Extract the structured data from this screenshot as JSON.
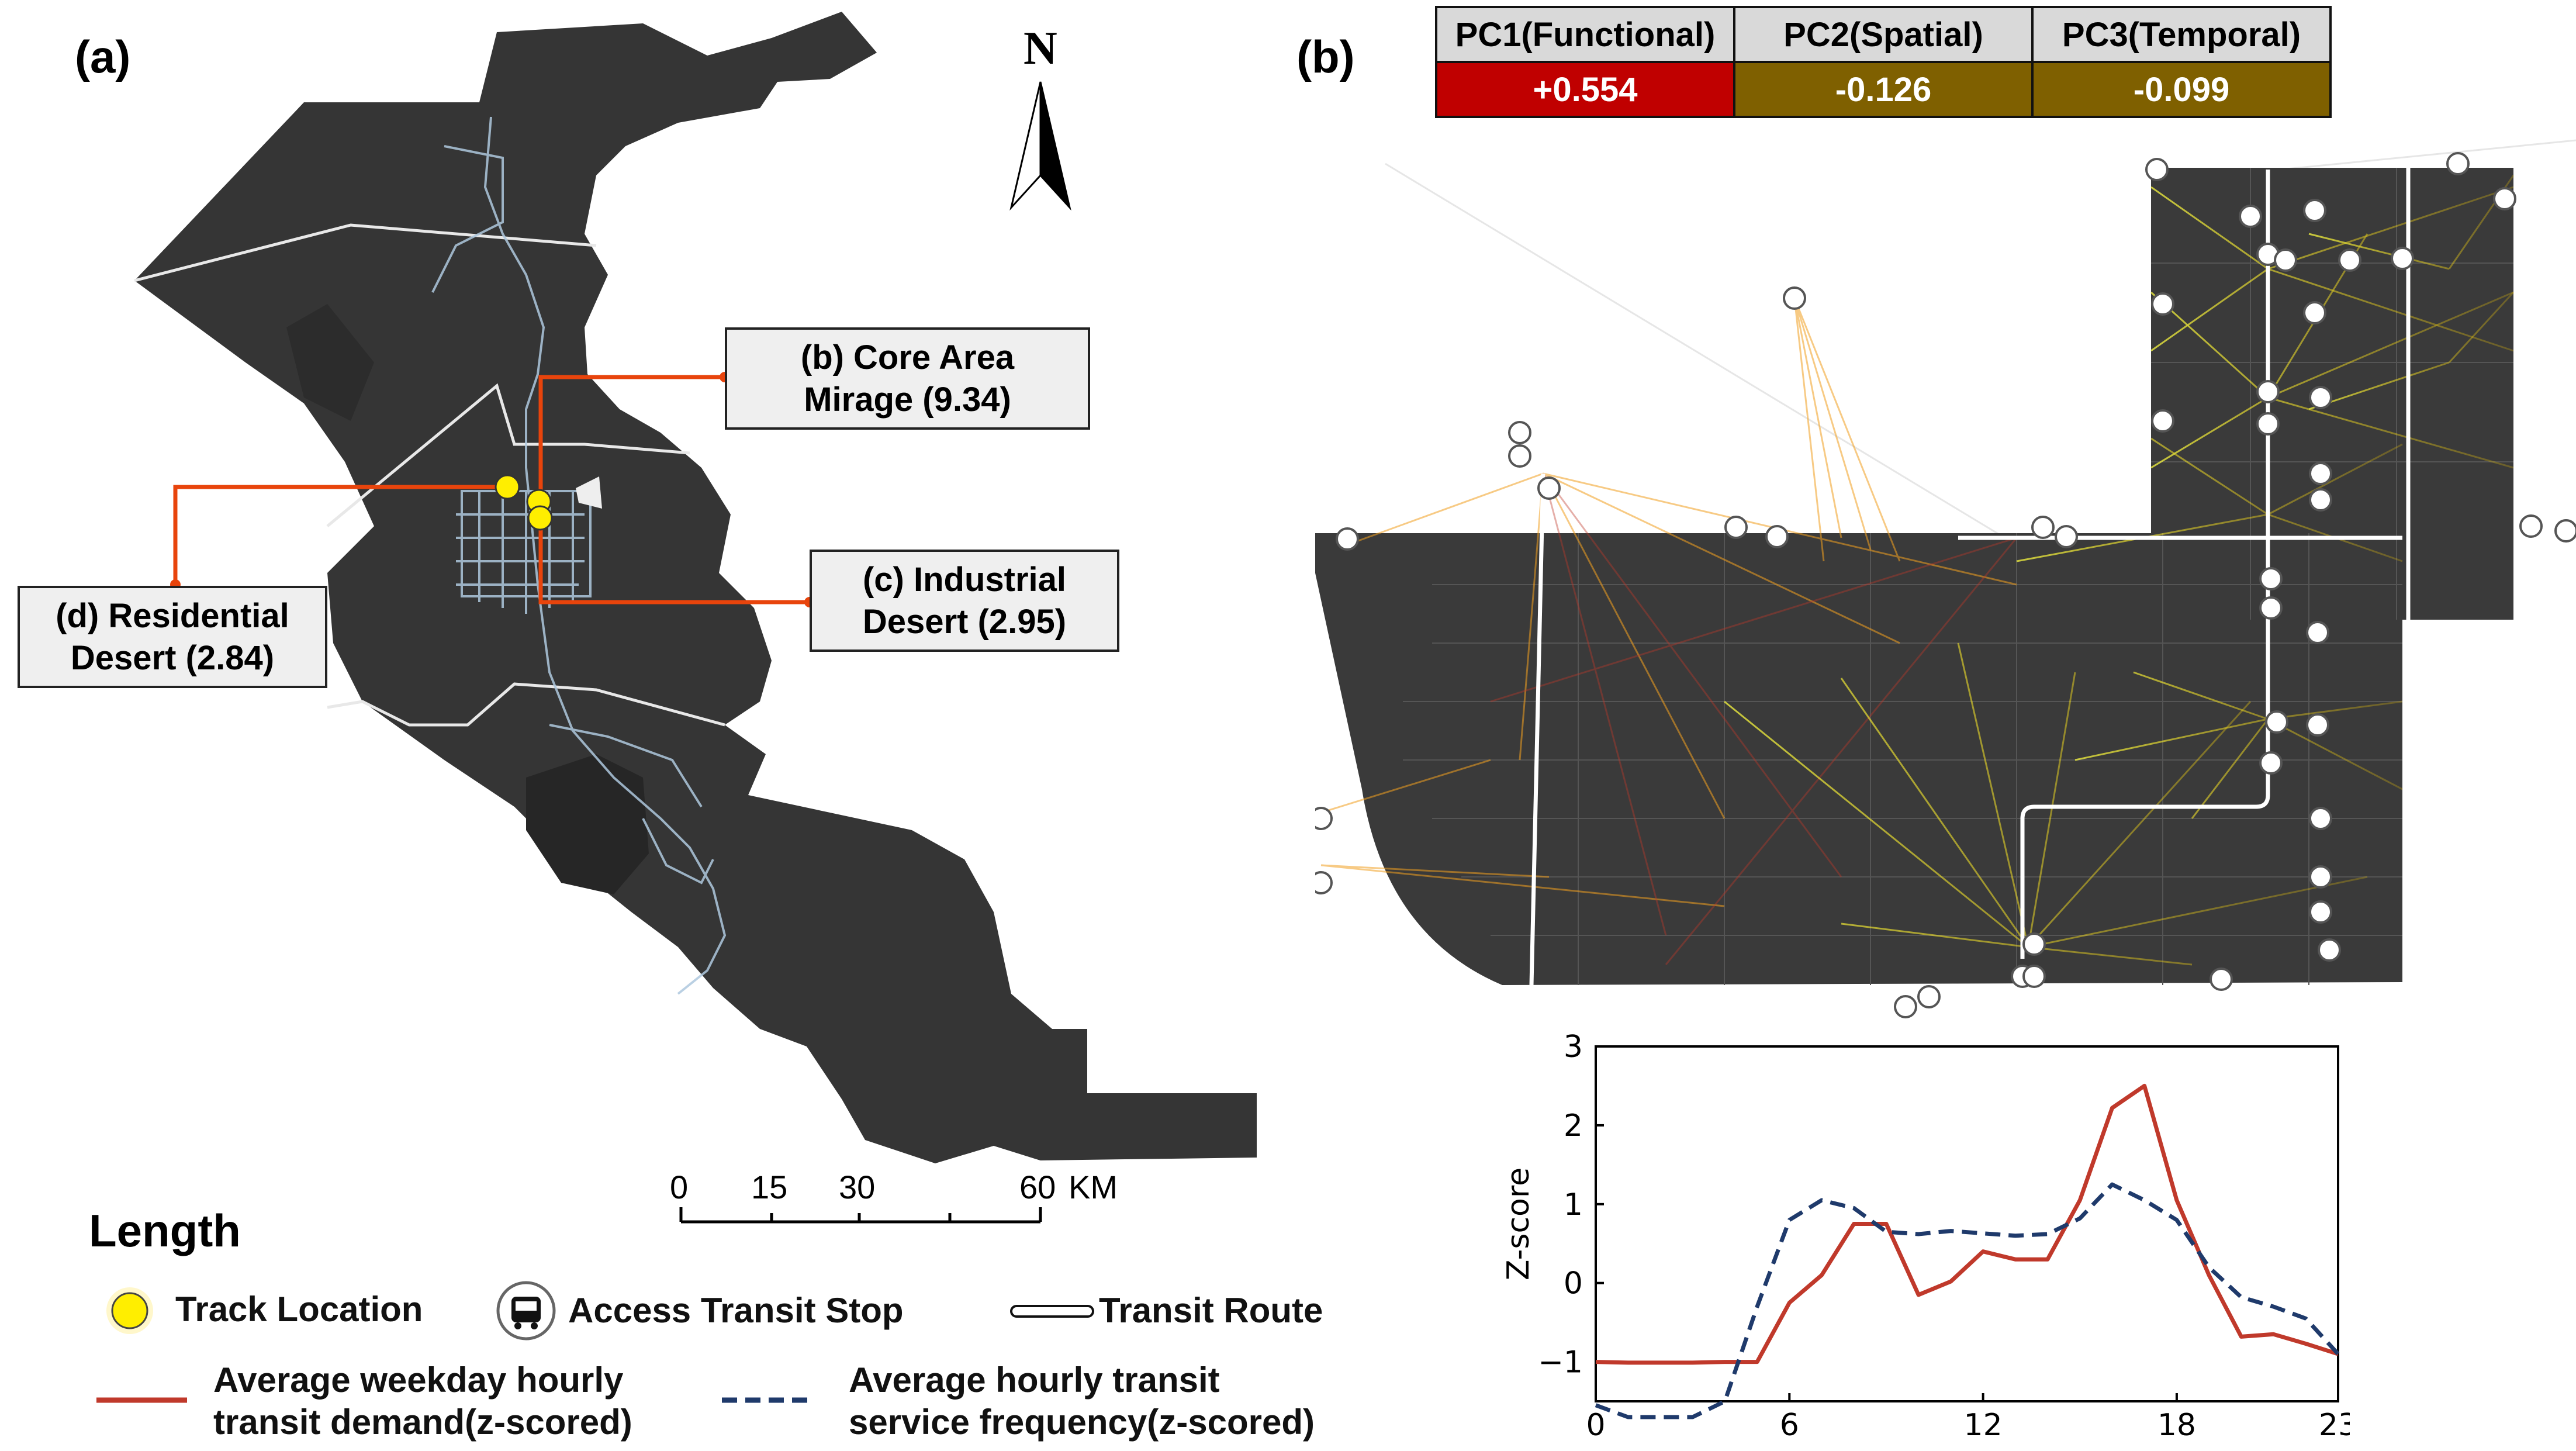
{
  "panels": {
    "a": "(a)",
    "b": "(b)"
  },
  "north": "N",
  "callouts": {
    "core": "(b) Core Area\nMirage (9.34)",
    "industrial": "(c) Industrial\nDesert (2.95)",
    "residential": "(d) Residential\nDesert (2.84)"
  },
  "scale_bar": {
    "labels": [
      "0",
      "15",
      "30",
      "60"
    ],
    "unit": "KM"
  },
  "pc_table": {
    "headers": [
      "PC1(Functional)",
      "PC2(Spatial)",
      "PC3(Temporal)"
    ],
    "values": [
      "+0.554",
      "-0.126",
      "-0.099"
    ],
    "colors": [
      "#c00000",
      "#7f6000",
      "#7f6000"
    ]
  },
  "legend": {
    "title": "Length",
    "track_location": "Track Location",
    "access_stop": "Access Transit Stop",
    "transit_route": "Transit Route",
    "demand_line": "Average weekday hourly\ntransit demand(z-scored)",
    "frequency_line": "Average hourly transit\nservice frequency(z-scored)"
  },
  "colors": {
    "map_dark": "#333333",
    "demand": "#c0392b",
    "frequency": "#1f3a6b",
    "callout_line": "#e8440c",
    "track_marker": "#ffee00"
  },
  "chart_data": {
    "type": "line",
    "title": "",
    "xlabel": "",
    "ylabel": "Z-score",
    "x": [
      0,
      1,
      2,
      3,
      4,
      5,
      6,
      7,
      8,
      9,
      10,
      11,
      12,
      13,
      14,
      15,
      16,
      17,
      18,
      19,
      20,
      21,
      22,
      23
    ],
    "xticks": [
      "0",
      "6",
      "12",
      "18",
      "23"
    ],
    "yticks": [
      "−1",
      "0",
      "1",
      "2",
      "3"
    ],
    "xlim": [
      0,
      23
    ],
    "ylim": [
      -1.5,
      3
    ],
    "series": [
      {
        "name": "Average weekday hourly transit demand(z-scored)",
        "style": "solid",
        "values": [
          -1.0,
          -1.01,
          -1.01,
          -1.01,
          -1.0,
          -1.0,
          -0.25,
          0.1,
          0.75,
          0.75,
          -0.15,
          0.02,
          0.4,
          0.3,
          0.3,
          1.05,
          2.22,
          2.5,
          1.05,
          0.1,
          -0.68,
          -0.65,
          -0.77,
          -0.9
        ]
      },
      {
        "name": "Average hourly transit service frequency(z-scored)",
        "style": "dashed",
        "values": [
          -1.55,
          -1.7,
          -1.7,
          -1.7,
          -1.5,
          -0.3,
          0.8,
          1.05,
          0.95,
          0.65,
          0.62,
          0.66,
          0.63,
          0.6,
          0.62,
          0.82,
          1.25,
          1.05,
          0.8,
          0.2,
          -0.18,
          -0.3,
          -0.45,
          -0.9
        ]
      }
    ]
  }
}
